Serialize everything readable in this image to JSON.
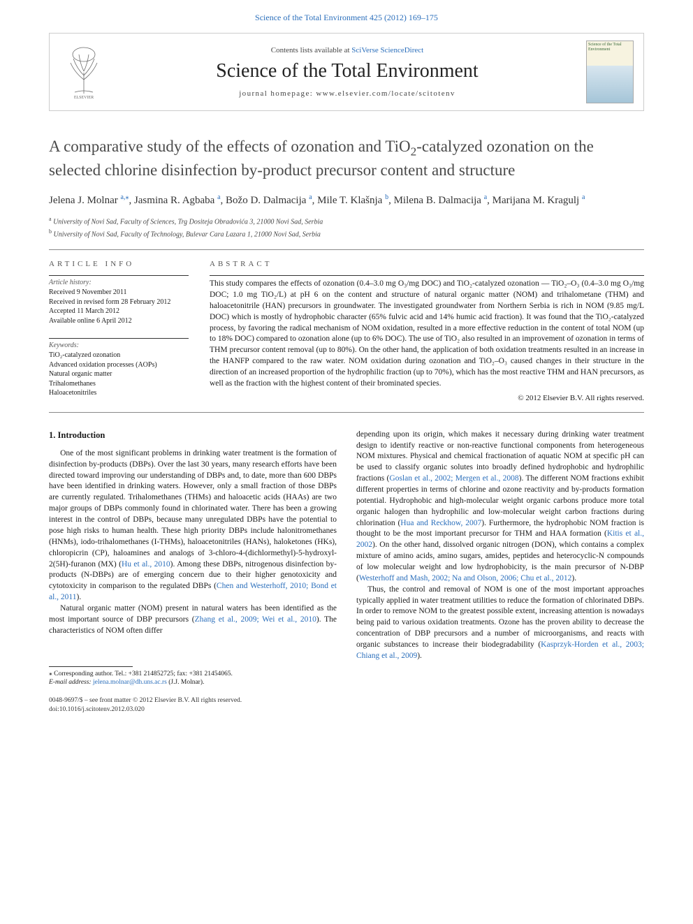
{
  "top_link_text": "Science of the Total Environment 425 (2012) 169–175",
  "header": {
    "contents_prefix": "Contents lists available at ",
    "contents_link": "SciVerse ScienceDirect",
    "journal_name": "Science of the Total Environment",
    "homepage": "journal homepage: www.elsevier.com/locate/scitotenv",
    "cover_title": "Science of the Total Environment"
  },
  "article": {
    "title_part1": "A comparative study of the effects of ozonation and TiO",
    "title_part2": "-catalyzed ozonation on the selected chlorine disinfection by-product precursor content and structure",
    "authors_html": "Jelena J. Molnar <a href='#'><span class='sup'>a,</span></a><a href='#'><span class='sup'>⁎</span></a>, Jasmina R. Agbaba <a href='#'><span class='sup'>a</span></a>, Božo D. Dalmacija <a href='#'><span class='sup'>a</span></a>, Mile T. Klašnja <a href='#'><span class='sup'>b</span></a>, Milena B. Dalmacija <a href='#'><span class='sup'>a</span></a>, Marijana M. Kragulj <a href='#'><span class='sup'>a</span></a>",
    "aff_a": "University of Novi Sad, Faculty of Sciences, Trg Dositeja Obradovića 3, 21000 Novi Sad, Serbia",
    "aff_b": "University of Novi Sad, Faculty of Technology, Bulevar Cara Lazara 1, 21000 Novi Sad, Serbia"
  },
  "info": {
    "section_label": "article info",
    "history_label": "Article history:",
    "history": [
      "Received 9 November 2011",
      "Received in revised form 28 February 2012",
      "Accepted 11 March 2012",
      "Available online 6 April 2012"
    ],
    "keywords_label": "Keywords:",
    "keywords": [
      "TiO₂-catalyzed ozonation",
      "Advanced oxidation processes (AOPs)",
      "Natural organic matter",
      "Trihalomethanes",
      "Haloacetonitriles"
    ]
  },
  "abstract": {
    "section_label": "abstract",
    "text": "This study compares the effects of ozonation (0.4–3.0 mg O₃/mg DOC) and TiO₂-catalyzed ozonation — TiO₂–O₃ (0.4–3.0 mg O₃/mg DOC; 1.0 mg TiO₂/L) at pH 6 on the content and structure of natural organic matter (NOM) and trihalometane (THM) and haloacetonitrile (HAN) precursors in groundwater. The investigated groundwater from Northern Serbia is rich in NOM (9.85 mg/L DOC) which is mostly of hydrophobic character (65% fulvic acid and 14% humic acid fraction). It was found that the TiO₂-catalyzed process, by favoring the radical mechanism of NOM oxidation, resulted in a more effective reduction in the content of total NOM (up to 18% DOC) compared to ozonation alone (up to 6% DOC). The use of TiO₂ also resulted in an improvement of ozonation in terms of THM precursor content removal (up to 80%). On the other hand, the application of both oxidation treatments resulted in an increase in the HANFP compared to the raw water. NOM oxidation during ozonation and TiO₂–O₃ caused changes in their structure in the direction of an increased proportion of the hydrophilic fraction (up to 70%), which has the most reactive THM and HAN precursors, as well as the fraction with the highest content of their brominated species.",
    "copyright": "© 2012 Elsevier B.V. All rights reserved."
  },
  "intro": {
    "heading": "1. Introduction",
    "col1_p1_html": "One of the most significant problems in drinking water treatment is the formation of disinfection by-products (DBPs). Over the last 30 years, many research efforts have been directed toward improving our understanding of DBPs and, to date, more than 600 DBPs have been identified in drinking waters. However, only a small fraction of those DBPs are currently regulated. Trihalomethanes (THMs) and haloacetic acids (HAAs) are two major groups of DBPs commonly found in chlorinated water. There has been a growing interest in the control of DBPs, because many unregulated DBPs have the potential to pose high risks to human health. These high priority DBPs include halonitromethanes (HNMs), iodo-trihalomethanes (I-THMs), haloacetonitriles (HANs), haloketones (HKs), chloropicrin (CP), haloamines and analogs of 3-chloro-4-(dichlormethyl)-5-hydroxyl-2(5H)-furanon (MX) (<a href='#'>Hu et al., 2010</a>). Among these DBPs, nitrogenous disinfection by-products (N-DBPs) are of emerging concern due to their higher genotoxicity and cytotoxicity in comparison to the regulated DBPs (<a href='#'>Chen and Westerhoff, 2010; Bond et al., 2011</a>).",
    "col1_p2_html": "Natural organic matter (NOM) present in natural waters has been identified as the most important source of DBP precursors (<a href='#'>Zhang et al., 2009; Wei et al., 2010</a>). The characteristics of NOM often differ",
    "col2_p1_html": "depending upon its origin, which makes it necessary during drinking water treatment design to identify reactive or non-reactive functional components from heterogeneous NOM mixtures. Physical and chemical fractionation of aquatic NOM at specific pH can be used to classify organic solutes into broadly defined hydrophobic and hydrophilic fractions (<a href='#'>Goslan et al., 2002; Mergen et al., 2008</a>). The different NOM fractions exhibit different properties in terms of chlorine and ozone reactivity and by-products formation potential. Hydrophobic and high-molecular weight organic carbons produce more total organic halogen than hydrophilic and low-molecular weight carbon fractions during chlorination (<a href='#'>Hua and Reckhow, 2007</a>). Furthermore, the hydrophobic NOM fraction is thought to be the most important precursor for THM and HAA formation (<a href='#'>Kitis et al., 2002</a>). On the other hand, dissolved organic nitrogen (DON), which contains a complex mixture of amino acids, amino sugars, amides, peptides and heterocyclic-N compounds of low molecular weight and low hydrophobicity, is the main precursor of N-DBP (<a href='#'>Westerhoff and Mash, 2002; Na and Olson, 2006; Chu et al., 2012</a>).",
    "col2_p2_html": "Thus, the control and removal of NOM is one of the most important approaches typically applied in water treatment utilities to reduce the formation of chlorinated DBPs. In order to remove NOM to the greatest possible extent, increasing attention is nowadays being paid to various oxidation treatments. Ozone has the proven ability to decrease the concentration of DBP precursors and a number of microorganisms, and reacts with organic substances to increase their biodegradability (<a href='#'>Kasprzyk-Horden et al., 2003; Chiang et al., 2009</a>)."
  },
  "footer": {
    "corr_author": "⁎ Corresponding author. Tel.: +381 214852725; fax: +381 21454065.",
    "email_label": "E-mail address: ",
    "email": "jelena.molnar@dh.uns.ac.rs",
    "email_suffix": " (J.J. Molnar).",
    "issn_line": "0048-9697/$ – see front matter © 2012 Elsevier B.V. All rights reserved.",
    "doi_line": "doi:10.1016/j.scitotenv.2012.03.020"
  },
  "colors": {
    "link": "#2a6ebb",
    "text": "#1a1a1a",
    "border": "#cccccc",
    "rule": "#333333"
  }
}
